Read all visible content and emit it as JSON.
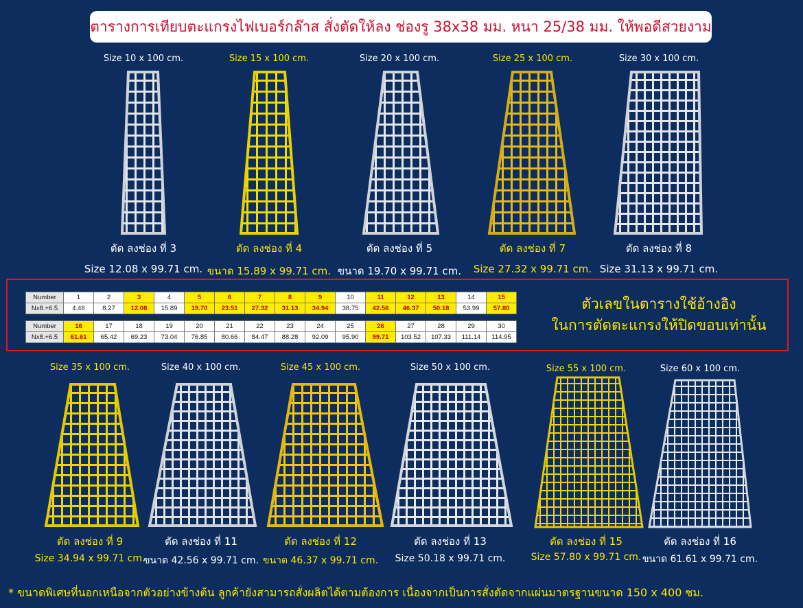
{
  "title": "ตารางการเทียบตะแกรงไฟเบอร์กล๊าส สั่งตัดให้ลง ช่องรู 38x38 มม. หนา 25/38 มม. ให้พอดีสวยงาม",
  "top_items": [
    {
      "size": "Size 10 x 100 cm.",
      "cut": "ตัด ลงช่อง ที่ 3",
      "dim": "Size 12.08 x 99.71 cm.",
      "color": "white"
    },
    {
      "size": "Size 15 x 100 cm.",
      "cut": "ตัด ลงช่อง ที่ 4",
      "dim": "ขนาด 15.89 x 99.71 cm.",
      "color": "yellow"
    },
    {
      "size": "Size 20 x 100 cm.",
      "cut": "ตัด ลงช่อง ที่ 5",
      "dim": "ขนาด 19.70 x 99.71 cm.",
      "color": "white"
    },
    {
      "size": "Size 25 x 100 cm.",
      "cut": "ตัด ลงช่อง ที่ 7",
      "dim": "Size 27.32 x 99.71 cm.",
      "color": "yellow"
    },
    {
      "size": "Size 30 x 100 cm.",
      "cut": "ตัด ลงช่อง ที่ 8",
      "dim": "Size 31.13 x 99.71 cm.",
      "color": "white"
    }
  ],
  "bottom_items": [
    {
      "size": "Size 35 x 100 cm.",
      "cut": "ตัด ลงช่อง ที่ 9",
      "dim": "Size 34.94 x 99.71 cm.",
      "color": "yellow"
    },
    {
      "size": "Size 40 x 100 cm.",
      "cut": "ตัด ลงช่อง ที่ 11",
      "dim": "ขนาด 42.56 x 99.71 cm.",
      "color": "white"
    },
    {
      "size": "Size 45 x 100 cm.",
      "cut": "ตัด ลงช่อง ที่ 12",
      "dim": "ขนาด 46.37 x 99.71 cm.",
      "color": "yellow"
    },
    {
      "size": "Size 50 x 100 cm.",
      "cut": "ตัด ลงช่อง ที่ 13",
      "dim": "Size 50.18 x 99.71 cm.",
      "color": "white"
    },
    {
      "size": "Size 55 x 100 cm.",
      "cut": "ตัด ลงช่อง ที่ 15",
      "dim": "Size 57.80 x 99.71 cm.",
      "color": "yellow"
    },
    {
      "size": "Size 60 x 100 cm.",
      "cut": "ตัด ลงช่อง ที่ 16",
      "dim": "ขนาด 61.61 x 99.71 cm.",
      "color": "white"
    }
  ],
  "table": {
    "row_label_number": "Number",
    "row_label_value": "Nx8.+6.5",
    "rows": [
      {
        "numbers": [
          "1",
          "2",
          "3",
          "4",
          "5",
          "6",
          "7",
          "8",
          "9",
          "10",
          "11",
          "12",
          "13",
          "14",
          "15"
        ],
        "values": [
          "4.46",
          "8.27",
          "12.08",
          "15.89",
          "19.70",
          "23.51",
          "27.32",
          "31.13",
          "34.94",
          "38.75",
          "42.56",
          "46.37",
          "50.18",
          "53.99",
          "57.80"
        ],
        "highlight": [
          "3",
          "5",
          "6",
          "7",
          "8",
          "9",
          "11",
          "12",
          "13",
          "15"
        ]
      },
      {
        "numbers": [
          "16",
          "17",
          "18",
          "19",
          "20",
          "21",
          "22",
          "23",
          "24",
          "25",
          "26",
          "27",
          "28",
          "29",
          "30"
        ],
        "values": [
          "61.61",
          "65.42",
          "69.23",
          "73.04",
          "76.85",
          "80.66",
          "84.47",
          "88.28",
          "92.09",
          "95.90",
          "99.71",
          "103.52",
          "107.33",
          "111.14",
          "114.95"
        ],
        "highlight": [
          "16",
          "26"
        ]
      }
    ]
  },
  "reference_note": {
    "line1": "ตัวเลขในตารางใช้อ้างอิง",
    "line2": "ในการตัดตะแกรงให้ปิดขอบเท่านั้น"
  },
  "footnote": "* ขนาดพิเศษที่นอกเหนือจากตัวอย่างข้างต้น  ลูกค้ายังสามารถสั่งผลิตได้ตามต้องการ เนื่องจากเป็นการสั่งตัดจากแผ่นมาตรฐานขนาด 150 x 400 ซม.",
  "colors": {
    "background": "#0c2d5e",
    "yellow": "#ffe600",
    "title_red": "#c8102e",
    "border_red": "#d9191c"
  }
}
